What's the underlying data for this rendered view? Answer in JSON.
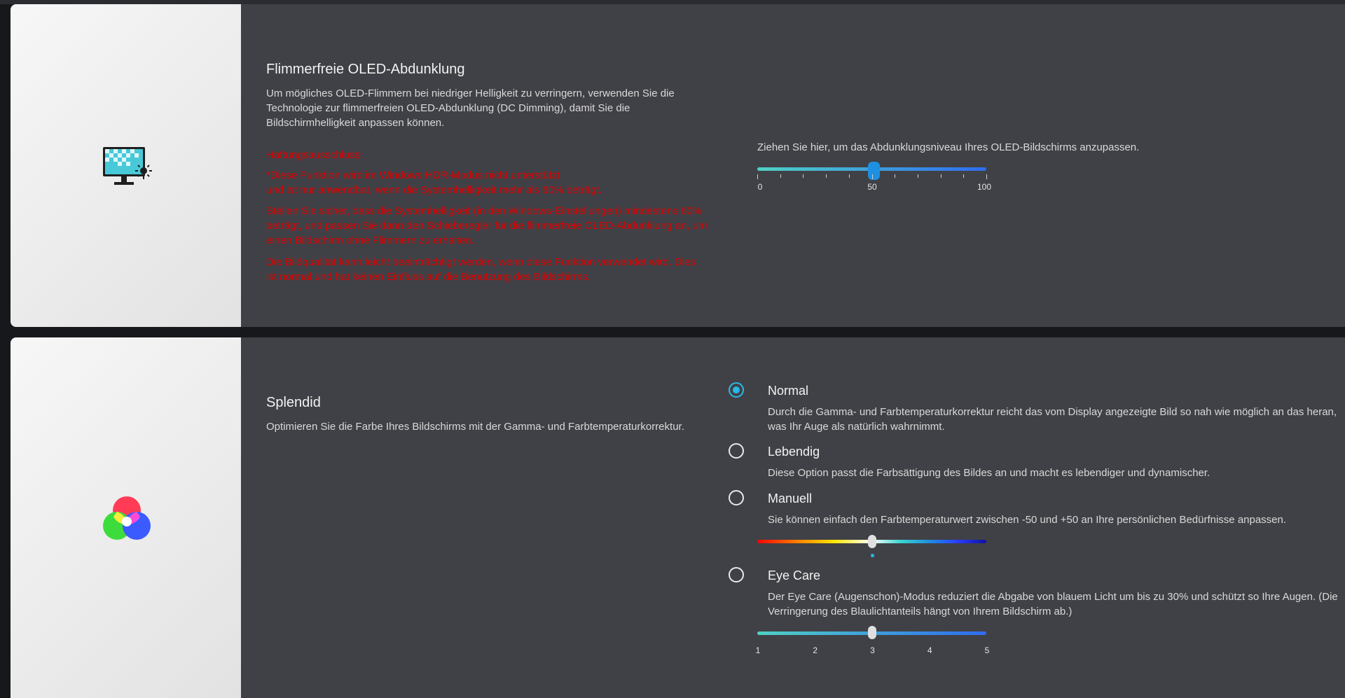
{
  "dimming": {
    "title": "Flimmerfreie OLED-Abdunklung",
    "description": "Um mögliches OLED-Flimmern bei niedriger Helligkeit zu verringern, verwenden Sie die Technologie zur flimmerfreien OLED-Abdunklung (DC Dimming), damit Sie die Bildschirmhelligkeit anpassen können.",
    "notes_heading": "Haftungsausschluss:",
    "note1_line1": "*Diese Funktion wird im Windows HDR-Modus nicht unterstützt",
    "note1_line2": "und ist nur anwendbar, wenn die Systemhelligkeit mehr als 60% beträgt.",
    "note2": "Stellen Sie sicher, dass die Systemhelligkeit (in den Windows-Einstellungen) mindestens 60% beträgt, und passen Sie dann den Schieberegler für die flimmerfreie OLED-Abdunklung an, um einen Bildschirm ohne Flimmern zu erhalten.",
    "note3": "Die Bildqualität kann leicht beeinträchtigt werden, wenn diese Funktion verwendet wird. Dies ist normal und hat keinen Einfluss auf die Benutzung des Bildschirms.",
    "slider_caption": "Ziehen Sie hier, um das Abdunklungsniveau Ihres OLED-Bildschirms anzupassen.",
    "slider_value": 50,
    "slider_min": 0,
    "slider_max": 100,
    "tick_labels": [
      "0",
      "50",
      "100"
    ],
    "icon": "monitor-brightness-icon"
  },
  "splendid": {
    "title": "Splendid",
    "description": "Optimieren Sie die Farbe Ihres Bildschirms mit der Gamma- und Farbtemperaturkorrektur.",
    "icon": "rgb-color-circles-icon",
    "selected": "Normal",
    "options": [
      {
        "label": "Normal",
        "desc": "Durch die Gamma- und Farbtemperaturkorrektur reicht das vom Display angezeigte Bild so nah wie möglich an das heran, was Ihr Auge als natürlich wahrnimmt."
      },
      {
        "label": "Lebendig",
        "desc": "Diese Option passt die Farbsättigung des Bildes an und macht es lebendiger und dynamischer."
      },
      {
        "label": "Manuell",
        "desc": "Sie können einfach den Farbtemperaturwert zwischen -50 und +50 an Ihre persönlichen Bedürfnisse anpassen."
      },
      {
        "label": "Eye Care",
        "desc": "Der Eye Care (Augenschon)-Modus reduziert die Abgabe von blauem Licht um bis zu 30% und schützt so Ihre Augen. (Die Verringerung des Blaulichtanteils hängt von Ihrem Bildschirm ab.)"
      }
    ],
    "manual_value": 0,
    "manual_min": -50,
    "manual_max": 50,
    "eyecare_value": 3,
    "eyecare_labels": [
      "1",
      "2",
      "3",
      "4",
      "5"
    ]
  },
  "colors": {
    "panel_bg": "#404146",
    "accent": "#29b8e8",
    "warning": "#e00000",
    "slider_start": "#4fd1c5",
    "slider_end": "#2f6df0"
  }
}
